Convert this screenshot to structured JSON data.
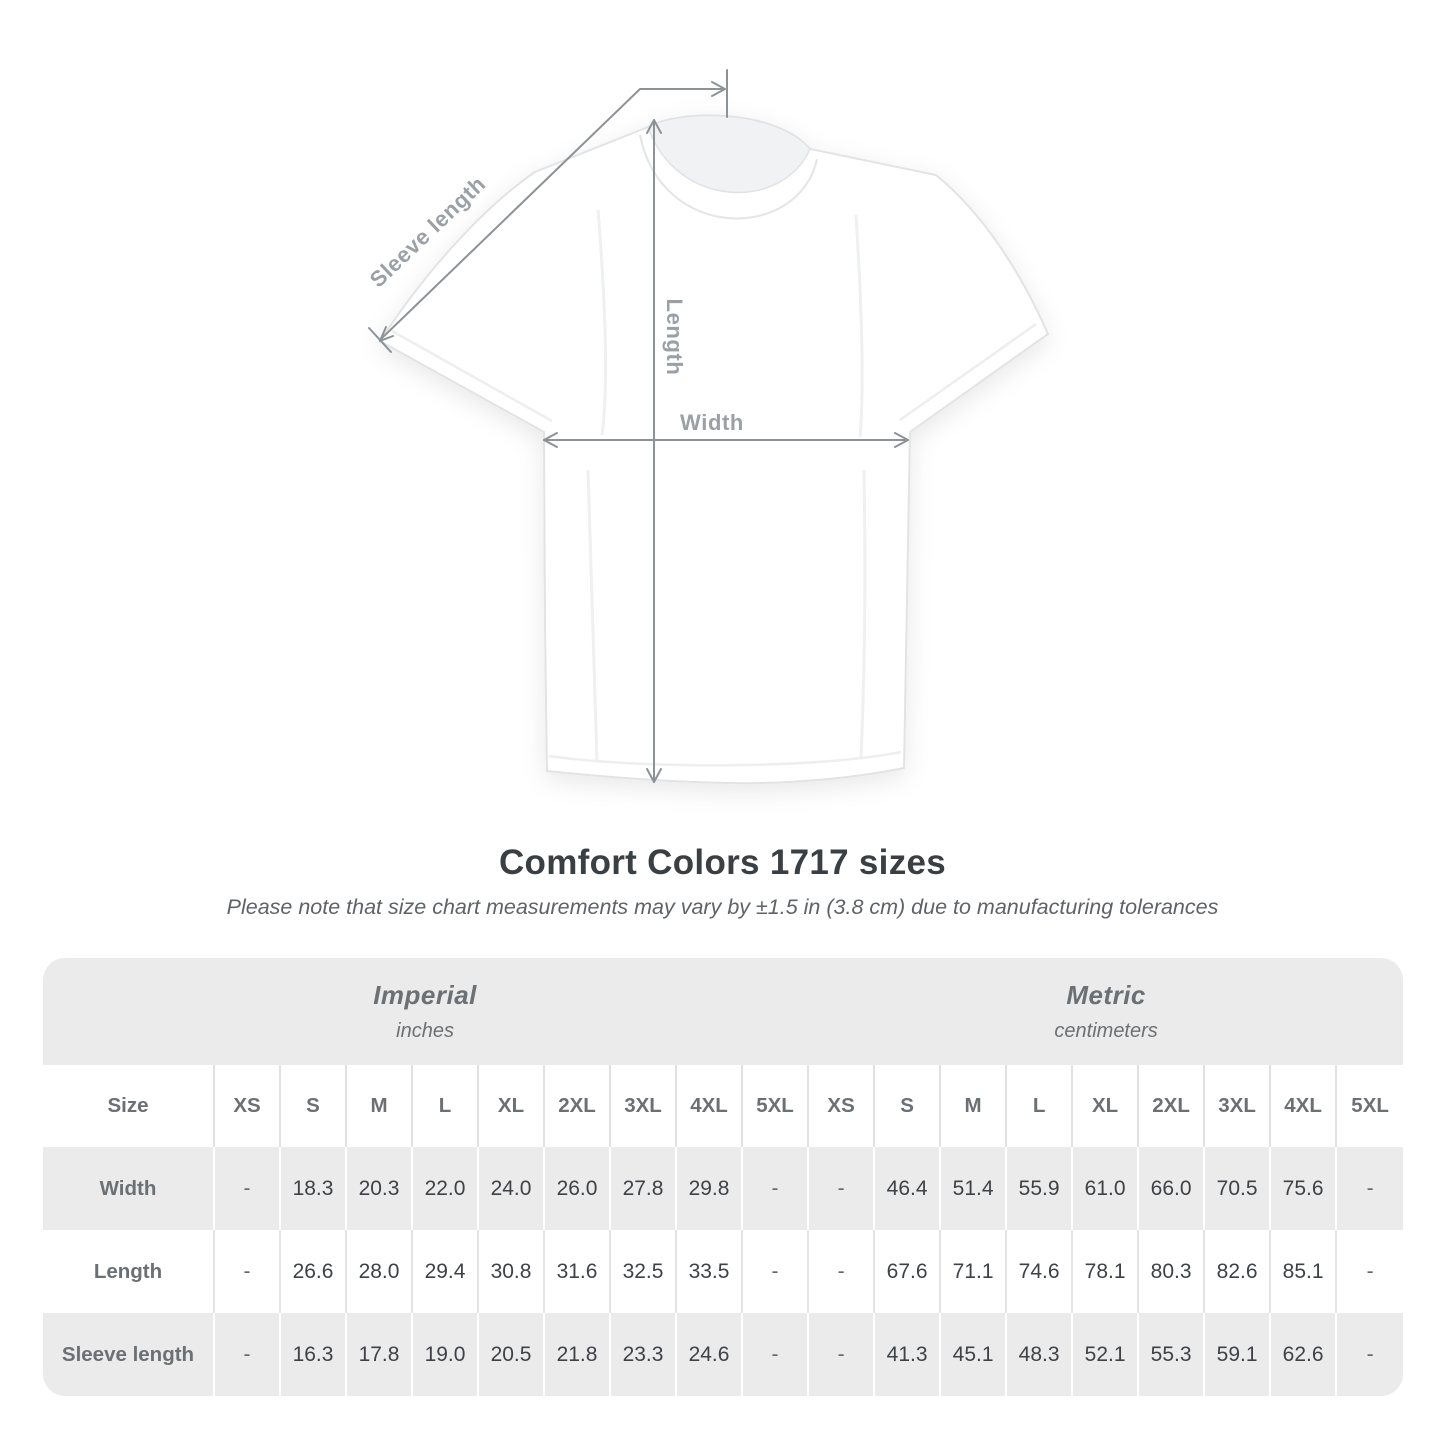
{
  "diagram": {
    "sleeve_label": "Sleeve length",
    "length_label": "Length",
    "width_label": "Width"
  },
  "title": "Comfort Colors 1717 sizes",
  "subtitle": "Please note that size chart measurements may vary by ±1.5 in (3.8 cm) due to manufacturing tolerances",
  "chart_data": {
    "type": "table",
    "title": "Comfort Colors 1717 sizes",
    "corner_header": "Size",
    "unit_groups": [
      {
        "label": "Imperial",
        "unit": "inches"
      },
      {
        "label": "Metric",
        "unit": "centimeters"
      }
    ],
    "sizes": [
      "XS",
      "S",
      "M",
      "L",
      "XL",
      "2XL",
      "3XL",
      "4XL",
      "5XL"
    ],
    "rows": [
      {
        "label": "Width",
        "imperial": [
          "-",
          "18.3",
          "20.3",
          "22.0",
          "24.0",
          "26.0",
          "27.8",
          "29.8",
          "-"
        ],
        "metric": [
          "-",
          "46.4",
          "51.4",
          "55.9",
          "61.0",
          "66.0",
          "70.5",
          "75.6",
          "-"
        ]
      },
      {
        "label": "Length",
        "imperial": [
          "-",
          "26.6",
          "28.0",
          "29.4",
          "30.8",
          "31.6",
          "32.5",
          "33.5",
          "-"
        ],
        "metric": [
          "-",
          "67.6",
          "71.1",
          "74.6",
          "78.1",
          "80.3",
          "82.6",
          "85.1",
          "-"
        ]
      },
      {
        "label": "Sleeve length",
        "imperial": [
          "-",
          "16.3",
          "17.8",
          "19.0",
          "20.5",
          "21.8",
          "23.3",
          "24.6",
          "-"
        ],
        "metric": [
          "-",
          "41.3",
          "45.1",
          "48.3",
          "52.1",
          "55.3",
          "59.1",
          "62.6",
          "-"
        ]
      }
    ]
  },
  "colors": {
    "dimension_line": "#8d9297",
    "dimension_label": "#9aa0a5",
    "title_text": "#3a3f44",
    "subtitle_text": "#5d6368",
    "table_stripe": "#ebebeb",
    "table_value_text": "#3e4247",
    "table_label_text": "#6b7074"
  }
}
